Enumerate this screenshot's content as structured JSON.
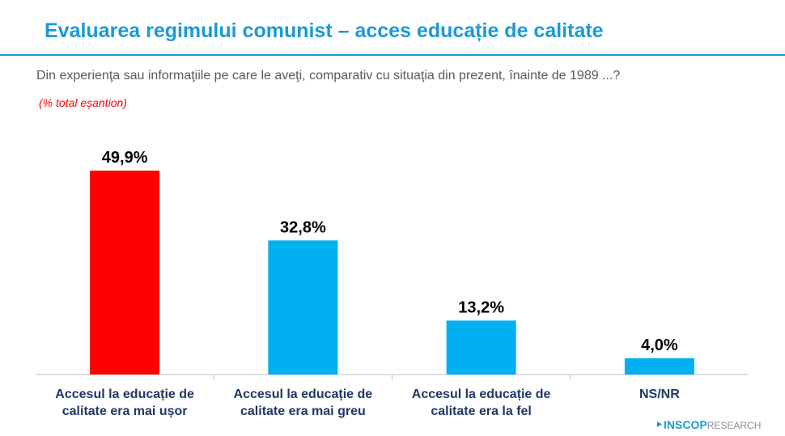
{
  "chart_data": {
    "type": "bar",
    "title": "Evaluarea regimului comunist – acces educație de calitate",
    "subtitle": "Din experienţa sau informaţiile pe care le aveţi, comparativ cu situaţia din prezent, înainte de 1989 ...?",
    "note": "(% total eșantion)",
    "categories": [
      "Accesul la educație de calitate era mai ușor",
      "Accesul la educație de calitate era mai greu",
      "Accesul la educație de calitate era la fel",
      "NS/NR"
    ],
    "values": [
      49.9,
      32.8,
      13.2,
      4.0
    ],
    "value_labels": [
      "49,9%",
      "32,8%",
      "13,2%",
      "4,0%"
    ],
    "colors": [
      "#ff0000",
      "#00b0f0",
      "#00b0f0",
      "#00b0f0"
    ],
    "ylim": [
      0,
      57
    ]
  },
  "logo": {
    "name": "INSCOP",
    "suffix": "RESEARCH"
  }
}
